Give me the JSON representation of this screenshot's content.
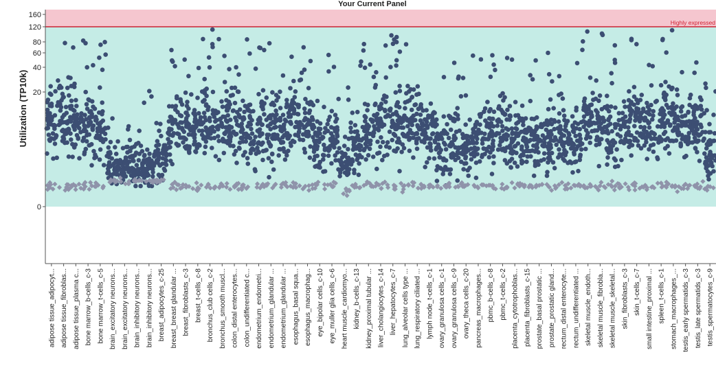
{
  "chart_data": {
    "type": "scatter",
    "title": "Your Current Panel",
    "ylabel": "Utilization (TP10k)",
    "xlabel": "",
    "y_scale": "log (transformed)",
    "y_ticks": [
      {
        "label": "160",
        "value": 160
      },
      {
        "label": "120",
        "value": 120
      },
      {
        "label": "80",
        "value": 80
      },
      {
        "label": "60",
        "value": 60
      },
      {
        "label": "40",
        "value": 40
      },
      {
        "label": "20",
        "value": 20
      },
      {
        "label": "0",
        "value": 0
      }
    ],
    "threshold": {
      "value": 120,
      "label": "Highly expressed",
      "color": "#cc2233"
    },
    "regions": {
      "highly_expressed_fill": "#f5c6cf",
      "normal_fill": "#c5ece6"
    },
    "series": [
      {
        "marker": "circle",
        "color": "#3c4e73"
      },
      {
        "marker": "diamond",
        "color": "#8f93aa"
      }
    ],
    "categories": [
      "adipose tissue_adipocyt...",
      "adipose tissue_fibroblas...",
      "adipose tissue_plasma c...",
      "bone marrow_b-cells_c-3",
      "bone marrow_t-cells_c-5",
      "brain_excitatory neurons...",
      "brain_excitatory neurons...",
      "brain_inhibitory neurons...",
      "brain_inhibitory neurons...",
      "breast_adipocytes_c-25",
      "breast_breast glandular ...",
      "breast_fibroblasts_c-3",
      "breast_t-cells_c-8",
      "bronchus_club cells_c-2",
      "bronchus_smooth muscl...",
      "colon_distal enterocytes...",
      "colon_undifferentiated c...",
      "endometrium_endometri...",
      "endometrium_glandular ...",
      "endometrium_glandular ...",
      "esophagus_basal squa...",
      "esophagus_macrophag...",
      "eye_bipolar cells_c-10",
      "eye_muller glia cells_c-6",
      "heart muscle_cardiomyo...",
      "kidney_b-cells_c-13",
      "kidney_proximal tubular ...",
      "liver_cholangiocytes_c-14",
      "liver_hepatocytes_c-7",
      "lung_alveolar cells type ...",
      "lung_respiratory ciliated ...",
      "lymph node_t-cells_c-1",
      "ovary_granulosa cells_c-1",
      "ovary_granulosa cells_c-9",
      "ovary_theca cells_c-20",
      "pancreas_macrophages...",
      "pbmc_b-cells_c-8",
      "pbmc_t-cells_c-2",
      "placenta_cytotrophoblas...",
      "placenta_fibroblasts_c-15",
      "prostate_basal prostatic ...",
      "prostate_prostatic gland...",
      "rectum_distal enterocyte...",
      "rectum_undifferentiated ...",
      "skeletal muscle_endoth...",
      "skeletal muscle_fibrobla...",
      "skeletal muscle_skeletal...",
      "skin_fibroblasts_c-3",
      "skin_t-cells_c-7",
      "small intestine_proximal ...",
      "spleen_t-cells_c-1",
      "stomach_macrophages_...",
      "testis_early spermatids_c-3",
      "testis_late spermatids_c-3",
      "testis_spermatocytes_c-9"
    ],
    "grid": false,
    "legend": "none"
  }
}
